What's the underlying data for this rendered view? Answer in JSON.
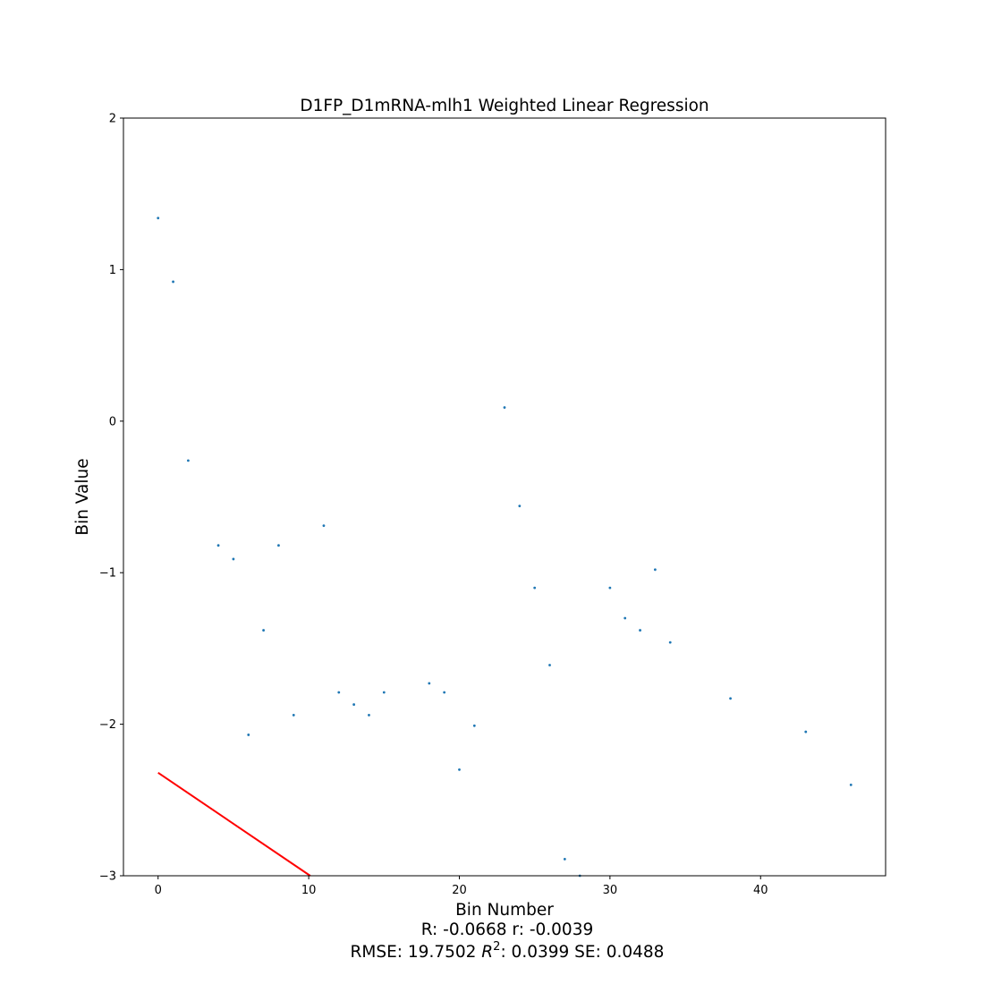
{
  "chart_data": {
    "type": "scatter",
    "title": "D1FP_D1mRNA-mlh1 Weighted Linear Regression",
    "xlabel": "Bin Number",
    "ylabel": "Bin Value",
    "xlim": [
      -2.3,
      48.3
    ],
    "ylim": [
      -3,
      2
    ],
    "xticks": [
      0,
      10,
      20,
      30,
      40
    ],
    "yticks": [
      -3,
      -2,
      -1,
      0,
      1,
      2
    ],
    "grid": false,
    "point_color": "#1f77b4",
    "line_color": "#ff0000",
    "points": [
      {
        "x": 0,
        "y": 1.34
      },
      {
        "x": 1,
        "y": 0.92
      },
      {
        "x": 2,
        "y": -0.26
      },
      {
        "x": 4,
        "y": -0.82
      },
      {
        "x": 5,
        "y": -0.91
      },
      {
        "x": 6,
        "y": -2.07
      },
      {
        "x": 7,
        "y": -1.38
      },
      {
        "x": 8,
        "y": -0.82
      },
      {
        "x": 9,
        "y": -1.94
      },
      {
        "x": 11,
        "y": -0.69
      },
      {
        "x": 12,
        "y": -1.79
      },
      {
        "x": 13,
        "y": -1.87
      },
      {
        "x": 14,
        "y": -1.94
      },
      {
        "x": 15,
        "y": -1.79
      },
      {
        "x": 18,
        "y": -1.73
      },
      {
        "x": 19,
        "y": -1.79
      },
      {
        "x": 20,
        "y": -2.3
      },
      {
        "x": 21,
        "y": -2.01
      },
      {
        "x": 23,
        "y": 0.09
      },
      {
        "x": 24,
        "y": -0.56
      },
      {
        "x": 25,
        "y": -1.1
      },
      {
        "x": 26,
        "y": -1.61
      },
      {
        "x": 27,
        "y": -2.89
      },
      {
        "x": 28,
        "y": -3.0
      },
      {
        "x": 30,
        "y": -1.1
      },
      {
        "x": 31,
        "y": -1.3
      },
      {
        "x": 32,
        "y": -1.38
      },
      {
        "x": 33,
        "y": -0.98
      },
      {
        "x": 34,
        "y": -1.46
      },
      {
        "x": 38,
        "y": -1.83
      },
      {
        "x": 43,
        "y": -2.05
      },
      {
        "x": 46,
        "y": -2.4
      }
    ],
    "regression_line": {
      "x": [
        0,
        10.1
      ],
      "y": [
        -2.32,
        -3.0
      ]
    },
    "stats_line1": "R: -0.0668 r: -0.0039",
    "stats_line2_prefix": "RMSE: 19.7502 ",
    "stats_r2_symbol": "R",
    "stats_r2_exp": "2",
    "stats_line2_suffix": ": 0.0399 SE: 0.0488"
  }
}
